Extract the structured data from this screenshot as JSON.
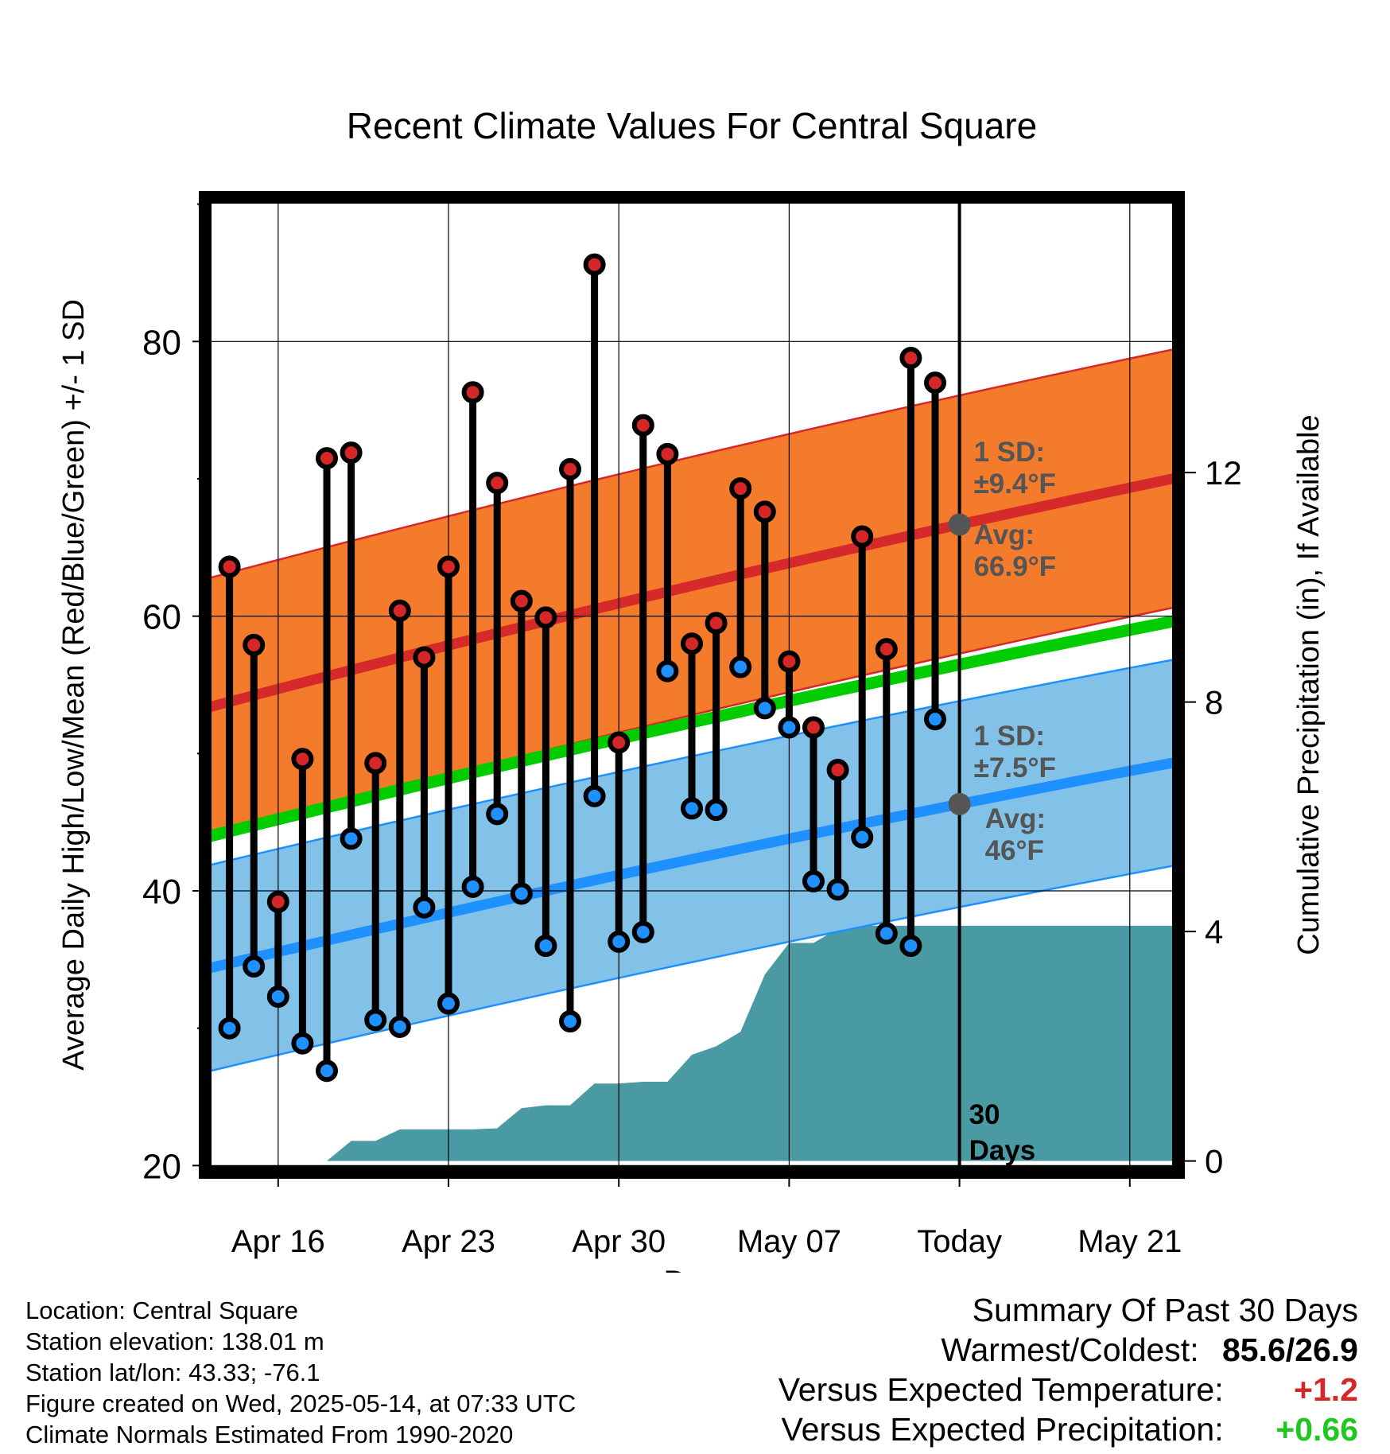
{
  "chart_data": {
    "type": "line",
    "title": "Recent Climate Values For Central Square",
    "xlabel": "Day",
    "ylabel": "Average Daily High/Low/Mean (Red/Blue/Green) +/- 1 SD",
    "y2label": "Cumulative Precipitation (in), If Available",
    "ylim": [
      19.5,
      90.5
    ],
    "y2lim": [
      -0.2,
      16.8
    ],
    "yticks": [
      20,
      40,
      60,
      80
    ],
    "y2ticks": [
      0,
      4,
      8,
      12
    ],
    "x_tick_labels": [
      "Apr 16",
      "Apr 23",
      "Apr 30",
      "May 07",
      "Today",
      "May 21"
    ],
    "x_start": "Apr 13",
    "x_end": "May 23",
    "today": "May 14",
    "highs": [
      63.6,
      57.9,
      39.2,
      49.6,
      71.5,
      71.9,
      49.3,
      60.4,
      57.0,
      63.6,
      76.3,
      69.7,
      61.1,
      59.9,
      70.7,
      85.6,
      50.8,
      73.9,
      71.8,
      58.0,
      59.5,
      69.3,
      67.6,
      56.7,
      51.9,
      48.8,
      65.8,
      57.6,
      78.8,
      77.0
    ],
    "lows": [
      30.0,
      34.5,
      32.3,
      28.9,
      26.9,
      43.8,
      30.6,
      30.1,
      38.8,
      31.8,
      40.3,
      45.6,
      39.8,
      36.0,
      30.5,
      46.9,
      36.3,
      37.0,
      56.0,
      46.0,
      45.9,
      56.3,
      53.3,
      51.9,
      40.7,
      40.1,
      43.9,
      36.9,
      36.0,
      52.5
    ],
    "normal_high": {
      "start": 53.3,
      "end": 70.1,
      "sd": 9.4
    },
    "normal_low": {
      "start": 34.3,
      "end": 49.4,
      "sd": 7.5
    },
    "normal_mean": {
      "start": 43.9,
      "end": 59.7
    },
    "precip_days": [
      "Apr 14",
      "Apr 18",
      "Apr 19",
      "Apr 20",
      "Apr 21",
      "Apr 22",
      "Apr 23",
      "Apr 24",
      "Apr 25",
      "Apr 26",
      "Apr 27",
      "Apr 28",
      "Apr 29",
      "Apr 30",
      "May 01",
      "May 02",
      "May 03",
      "May 04",
      "May 05",
      "May 06",
      "May 07",
      "May 08",
      "May 09",
      "May 10",
      "May 11",
      "May 23"
    ],
    "precip_cum": [
      0,
      0,
      0.35,
      0.35,
      0.55,
      0.55,
      0.55,
      0.55,
      0.57,
      0.92,
      0.97,
      0.97,
      1.35,
      1.35,
      1.38,
      1.38,
      1.85,
      2.0,
      2.25,
      3.25,
      3.8,
      3.8,
      4.05,
      4.1,
      4.1,
      4.1
    ],
    "today_annotations": {
      "high_sd": "1 SD:\n±9.4°F",
      "high_avg": "Avg:\n66.9°F",
      "low_sd": "1 SD:\n±7.5°F",
      "low_avg": "Avg:\n46°F",
      "days": "30\nDays"
    },
    "colors": {
      "high_point": "#d62728",
      "low_point": "#1e90ff",
      "high_band": "#f47b2b",
      "high_line": "#d62a2a",
      "low_band": "#82c1e8",
      "low_line": "#1e90ff",
      "mean_line": "#00cc00",
      "precip": "#4a9aa3",
      "annotation": "#555555",
      "warm": "#d62728",
      "wet": "#1ec81e"
    }
  },
  "info": {
    "location": "Location: Central Square",
    "elevation": "Station elevation: 138.01 m",
    "latlon": "Station lat/lon: 43.33; -76.1",
    "created": "Figure created on Wed, 2025-05-14, at 07:33 UTC",
    "normals": "Climate Normals Estimated From 1990-2020"
  },
  "summary": {
    "title": "Summary Of Past 30 Days",
    "warmest_label": "Warmest/Coldest:",
    "warmest_value": "85.6/26.9",
    "temp_label": "Versus Expected Temperature:",
    "temp_value": "+1.2",
    "precip_label": "Versus Expected Precipitation:",
    "precip_value": "+0.66"
  }
}
